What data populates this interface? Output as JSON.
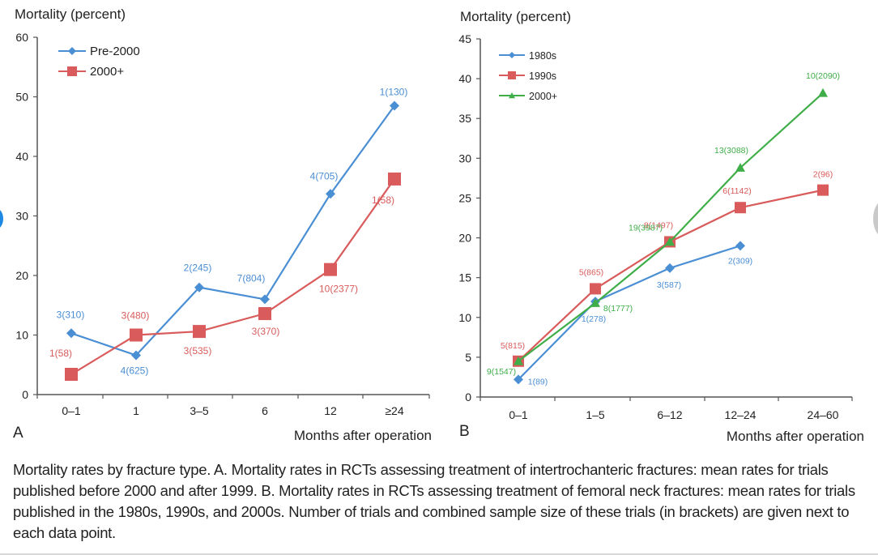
{
  "caption": "Mortality rates by fracture type. A. Mortality rates in RCTs assessing treatment of intertrochanteric fractures: mean rates for trials published before 2000 and after 1999. B. Mortality rates in RCTs assessing treatment of femoral neck fractures: mean rates for trials published in the 1980s, 1990s, and 2000s. Number of trials and combined sample size of these trials (in brackets) are given next to each data point.",
  "colors": {
    "blue": "#4a8ed4",
    "red": "#d95b5b",
    "green": "#3fae49",
    "axis": "#555555"
  },
  "chart_data": [
    {
      "panel": "A",
      "type": "line",
      "title": "",
      "ylabel": "Mortality (percent)",
      "xlabel": "Months after operation",
      "ylim": [
        0,
        60
      ],
      "yticks": [
        0,
        10,
        20,
        30,
        40,
        50,
        60
      ],
      "grid": false,
      "legend_position": "top-left",
      "categories": [
        "0–1",
        "1",
        "3–5",
        "6",
        "12",
        "≥24"
      ],
      "series": [
        {
          "name": "Pre-2000",
          "color": "blue",
          "marker": "diamond",
          "values": [
            10.3,
            6.6,
            18.0,
            16.0,
            33.7,
            48.5
          ],
          "labels": [
            "3(310)",
            "4(625)",
            "2(245)",
            "7(804)",
            "4(705)",
            "1(130)"
          ]
        },
        {
          "name": "2000+",
          "color": "red",
          "marker": "square",
          "values": [
            3.4,
            10.0,
            10.6,
            13.6,
            21.0,
            36.2
          ],
          "labels": [
            "1(58)",
            "3(480)",
            "3(535)",
            "3(370)",
            "10(2377)",
            "1(58)"
          ]
        }
      ]
    },
    {
      "panel": "B",
      "type": "line",
      "title": "",
      "ylabel": "Mortality (percent)",
      "xlabel": "Months after operation",
      "ylim": [
        0,
        45
      ],
      "yticks": [
        0,
        5,
        10,
        15,
        20,
        25,
        30,
        35,
        40,
        45
      ],
      "grid": false,
      "legend_position": "top-left",
      "categories": [
        "0–1",
        "1–5",
        "6–12",
        "12–24",
        "24–60"
      ],
      "series": [
        {
          "name": "1980s",
          "color": "blue",
          "marker": "diamond",
          "values": [
            2.2,
            12.0,
            16.2,
            19.0,
            null
          ],
          "labels": [
            "1(89)",
            "1(278)",
            "3(587)",
            "2(309)",
            null
          ]
        },
        {
          "name": "1990s",
          "color": "red",
          "marker": "square",
          "values": [
            4.5,
            13.6,
            19.5,
            23.8,
            26.0
          ],
          "labels": [
            "5(815)",
            "5(865)",
            "8(1497)",
            "6(1142)",
            "2(96)"
          ]
        },
        {
          "name": "2000+",
          "color": "green",
          "marker": "triangle",
          "values": [
            4.5,
            11.8,
            19.5,
            28.8,
            38.2
          ],
          "labels": [
            "9(1547)",
            "8(1777)",
            "19(3987)",
            "13(3088)",
            "10(2090)"
          ]
        }
      ]
    }
  ]
}
